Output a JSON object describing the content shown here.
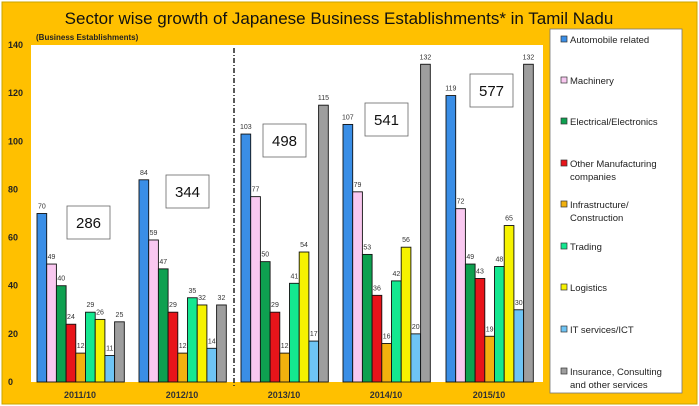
{
  "chart_data": {
    "type": "bar",
    "title": "Sector wise growth of Japanese Business Establishments* in Tamil Nadu",
    "ylabel": "(Business Establishments)",
    "xlabel": "",
    "ylim": [
      0,
      140
    ],
    "yticks": [
      0,
      20,
      40,
      60,
      80,
      100,
      120,
      140
    ],
    "grid": false,
    "legend_position": "right",
    "categories": [
      "2011/10",
      "2012/10",
      "2013/10",
      "2014/10",
      "2015/10"
    ],
    "totals": [
      286,
      344,
      498,
      541,
      577
    ],
    "series": [
      {
        "name": "Automobile related",
        "color": "#3A8EE6",
        "values": [
          70,
          84,
          103,
          107,
          119
        ]
      },
      {
        "name": "Machinery",
        "color": "#F9C8F0",
        "values": [
          49,
          59,
          77,
          79,
          72
        ]
      },
      {
        "name": "Electrical/Electronics",
        "color": "#0EA050",
        "values": [
          40,
          47,
          50,
          53,
          49
        ]
      },
      {
        "name": "Other Manufacturing companies",
        "color": "#E8141A",
        "values": [
          24,
          29,
          29,
          36,
          43
        ]
      },
      {
        "name": "Infrastructure/ Construction",
        "color": "#F2B10E",
        "values": [
          12,
          12,
          12,
          16,
          19
        ]
      },
      {
        "name": "Trading",
        "color": "#14E890",
        "values": [
          29,
          35,
          41,
          42,
          48
        ]
      },
      {
        "name": "Logistics",
        "color": "#F6F200",
        "values": [
          26,
          32,
          54,
          56,
          65
        ]
      },
      {
        "name": "IT services/ICT",
        "color": "#6EC4F4",
        "values": [
          11,
          14,
          17,
          20,
          30
        ]
      },
      {
        "name": "Insurance, Consulting and other services",
        "color": "#9E9E9E",
        "values": [
          25,
          32,
          115,
          132,
          132
        ]
      }
    ],
    "background_color": "#FFC000"
  }
}
